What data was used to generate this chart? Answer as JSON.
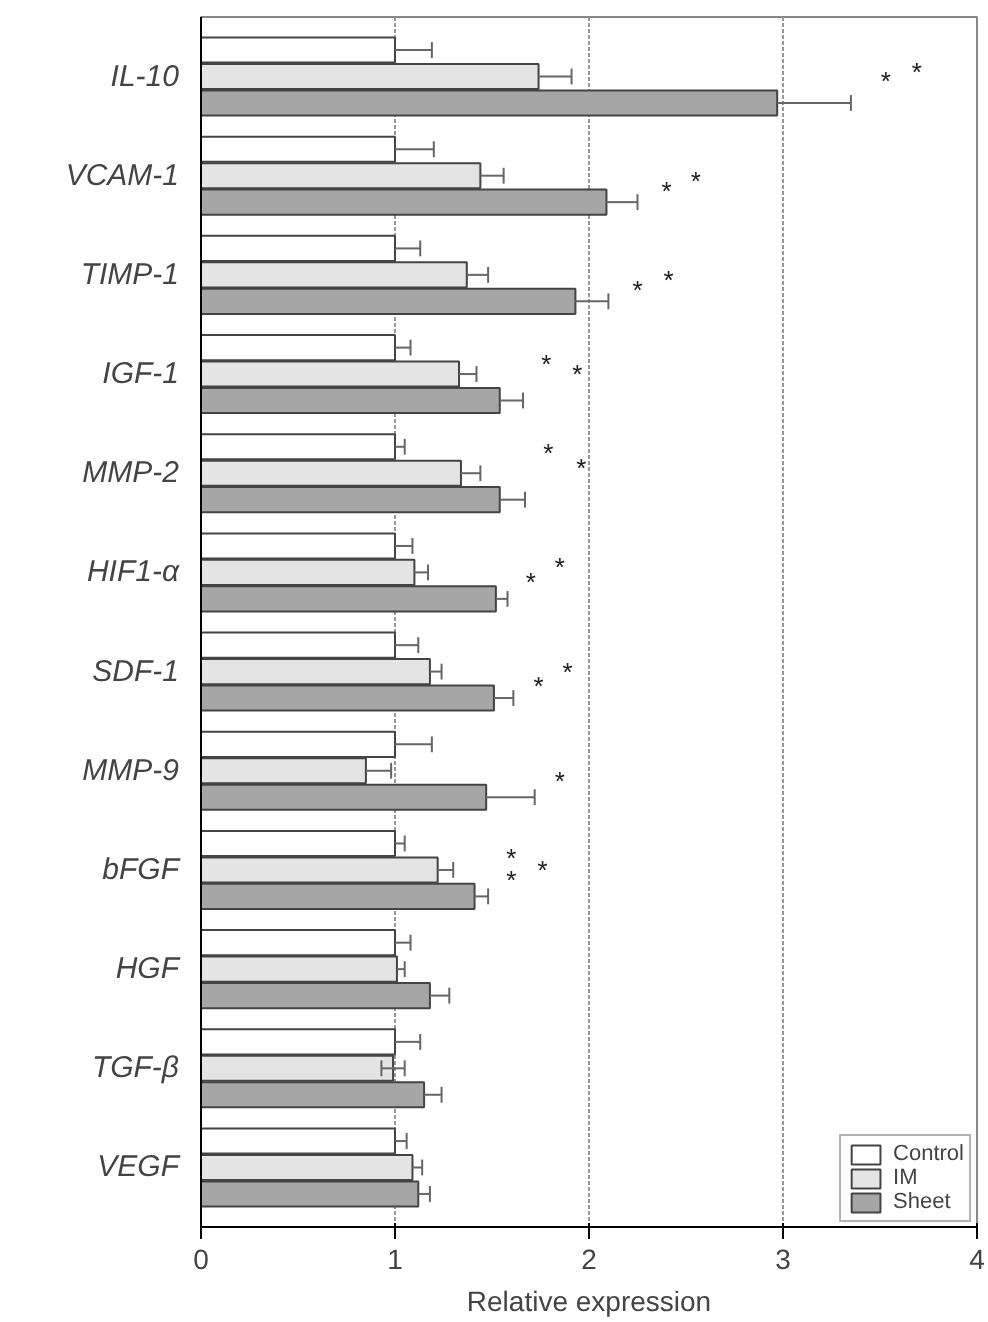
{
  "chart_data": {
    "type": "bar",
    "orientation": "horizontal",
    "xlabel": "Relative expression",
    "categories": [
      "IL-10",
      "VCAM-1",
      "TIMP-1",
      "IGF-1",
      "MMP-2",
      "HIF1-α",
      "SDF-1",
      "MMP-9",
      "bFGF",
      "HGF",
      "TGF-β",
      "VEGF"
    ],
    "xlim": [
      0,
      4
    ],
    "xticks": [
      0,
      1,
      2,
      3,
      4
    ],
    "grid": "x",
    "legend": "bottom right",
    "series": [
      {
        "name": "Control",
        "color": "#ffffff",
        "values": [
          1,
          1,
          1,
          1,
          1,
          1,
          1,
          1,
          1,
          1,
          1,
          1
        ],
        "errors": [
          [
            1,
            1.19
          ],
          [
            1,
            1.2
          ],
          [
            1,
            1.13
          ],
          [
            1,
            1.08
          ],
          [
            1,
            1.05
          ],
          [
            1,
            1.09
          ],
          [
            1,
            1.12
          ],
          [
            1,
            1.19
          ],
          [
            1,
            1.05
          ],
          [
            1,
            1.08
          ],
          [
            1,
            1.13
          ],
          [
            1,
            1.06
          ]
        ]
      },
      {
        "name": "IM",
        "color": "#e4e4e4",
        "values": [
          1.74,
          1.44,
          1.37,
          1.33,
          1.34,
          1.1,
          1.18,
          0.85,
          1.22,
          1.01,
          0.99,
          1.09
        ],
        "errors": [
          [
            1.74,
            1.91
          ],
          [
            1.44,
            1.56
          ],
          [
            1.37,
            1.48
          ],
          [
            1.33,
            1.42
          ],
          [
            1.34,
            1.44
          ],
          [
            1.1,
            1.17
          ],
          [
            1.18,
            1.24
          ],
          [
            0.85,
            0.98
          ],
          [
            1.22,
            1.3
          ],
          [
            1.01,
            1.05
          ],
          [
            0.93,
            1.05
          ],
          [
            1.09,
            1.14
          ]
        ]
      },
      {
        "name": "Sheet",
        "color": "#a6a6a6",
        "values": [
          2.97,
          2.09,
          1.93,
          1.54,
          1.54,
          1.52,
          1.51,
          1.47,
          1.41,
          1.18,
          1.15,
          1.12
        ],
        "errors": [
          [
            2.97,
            3.35
          ],
          [
            2.09,
            2.25
          ],
          [
            1.93,
            2.1
          ],
          [
            1.54,
            1.66
          ],
          [
            1.54,
            1.67
          ],
          [
            1.52,
            1.58
          ],
          [
            1.51,
            1.61
          ],
          [
            1.47,
            1.72
          ],
          [
            1.41,
            1.48
          ],
          [
            1.18,
            1.28
          ],
          [
            1.15,
            1.24
          ],
          [
            1.12,
            1.18
          ]
        ]
      }
    ],
    "annotations": [
      "*",
      "*",
      "*",
      "*",
      "*",
      "*",
      "*",
      "*",
      "*",
      "*",
      "*",
      "*",
      "*",
      "*",
      "*",
      "*",
      "*",
      "*"
    ]
  }
}
